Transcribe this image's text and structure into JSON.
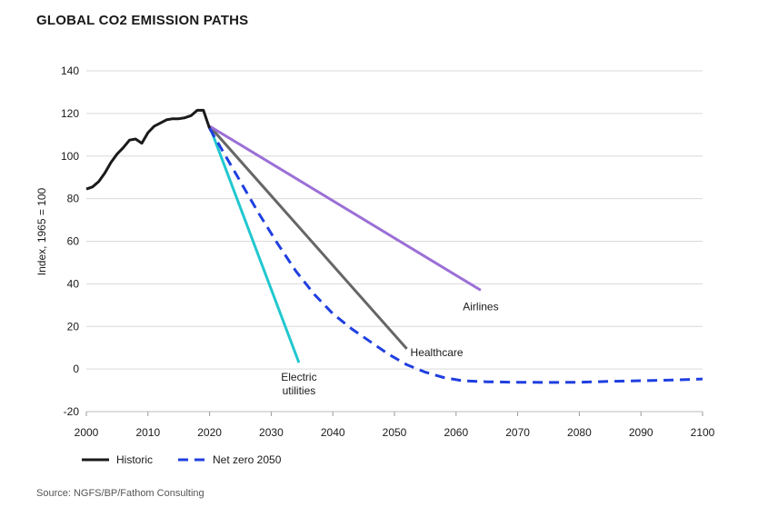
{
  "title": "GLOBAL CO2 EMISSION PATHS",
  "source": "Source: NGFS/BP/Fathom Consulting",
  "colors": {
    "historic": "#1a1a1a",
    "net_zero": "#1f3fe0",
    "electric": "#22c7cf",
    "healthcare": "#666666",
    "airlines": "#9b6fd6",
    "grid": "#d9d9d9"
  },
  "chart_data": {
    "type": "line",
    "title": "GLOBAL CO2 EMISSION PATHS",
    "xlabel": "",
    "ylabel": "Index, 1965 = 100",
    "xlim": [
      2000,
      2100
    ],
    "ylim": [
      -20,
      140
    ],
    "x_ticks": [
      2000,
      2010,
      2020,
      2030,
      2040,
      2050,
      2060,
      2070,
      2080,
      2090,
      2100
    ],
    "y_ticks": [
      -20,
      0,
      20,
      40,
      60,
      80,
      100,
      120,
      140
    ],
    "grid": true,
    "legend_position": "bottom-left",
    "series": [
      {
        "name": "Historic",
        "style": "solid",
        "x": [
          2000,
          2001,
          2002,
          2003,
          2004,
          2005,
          2006,
          2007,
          2008,
          2009,
          2010,
          2011,
          2012,
          2013,
          2014,
          2015,
          2016,
          2017,
          2018,
          2019,
          2020
        ],
        "y": [
          84.5,
          85.5,
          88,
          92,
          97,
          101,
          104,
          107.5,
          108,
          106,
          111,
          114,
          115.5,
          117,
          117.5,
          117.5,
          118,
          119,
          121.5,
          121.5,
          113
        ]
      },
      {
        "name": "Net zero 2050",
        "style": "dashed",
        "x": [
          2020,
          2022,
          2025,
          2028,
          2031,
          2034,
          2037,
          2040,
          2043,
          2046,
          2049,
          2052,
          2055,
          2058,
          2061,
          2065,
          2070,
          2075,
          2080,
          2085,
          2090,
          2095,
          2100
        ],
        "y": [
          113,
          103,
          88,
          73,
          59,
          46,
          35,
          26,
          19,
          13,
          7,
          2,
          -1.5,
          -4,
          -5.5,
          -6,
          -6.2,
          -6.3,
          -6.2,
          -5.8,
          -5.5,
          -5.2,
          -4.7
        ]
      },
      {
        "name": "Electric utilities",
        "label": "Electric\nutilities",
        "style": "solid",
        "x": [
          2020,
          2034.5
        ],
        "y": [
          114,
          3
        ]
      },
      {
        "name": "Healthcare",
        "label": "Healthcare",
        "style": "solid",
        "x": [
          2020,
          2052
        ],
        "y": [
          114,
          9.5
        ]
      },
      {
        "name": "Airlines",
        "label": "Airlines",
        "style": "solid",
        "x": [
          2020,
          2064
        ],
        "y": [
          114,
          37
        ]
      }
    ],
    "legend": [
      {
        "name": "Historic",
        "style": "solid"
      },
      {
        "name": "Net zero 2050",
        "style": "dashed"
      }
    ]
  }
}
